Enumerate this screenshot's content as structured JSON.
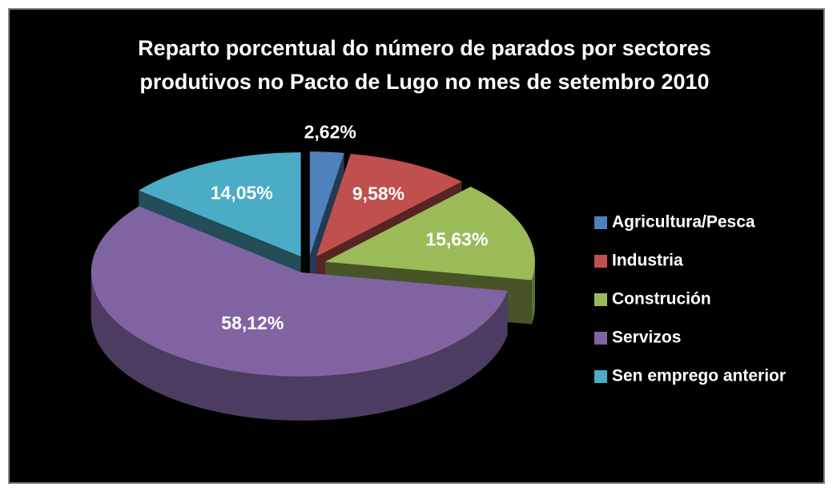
{
  "chart_data": {
    "type": "pie",
    "title": [
      "Reparto porcentual do número de parados por sectores",
      "produtivos no Pacto de Lugo no mes de setembro 2010"
    ],
    "categories": [
      "Agricultura/Pesca",
      "Industria",
      "Construción",
      "Servizos",
      "Sen emprego anterior"
    ],
    "values": [
      2.62,
      9.58,
      15.63,
      58.12,
      14.05
    ],
    "value_labels": [
      "2,62%",
      "9,58%",
      "15,63%",
      "58,12%",
      "14,05%"
    ],
    "colors": [
      "#4f81bd",
      "#c0504d",
      "#9bbb59",
      "#8064a2",
      "#4bacc6"
    ],
    "legend": "right"
  }
}
